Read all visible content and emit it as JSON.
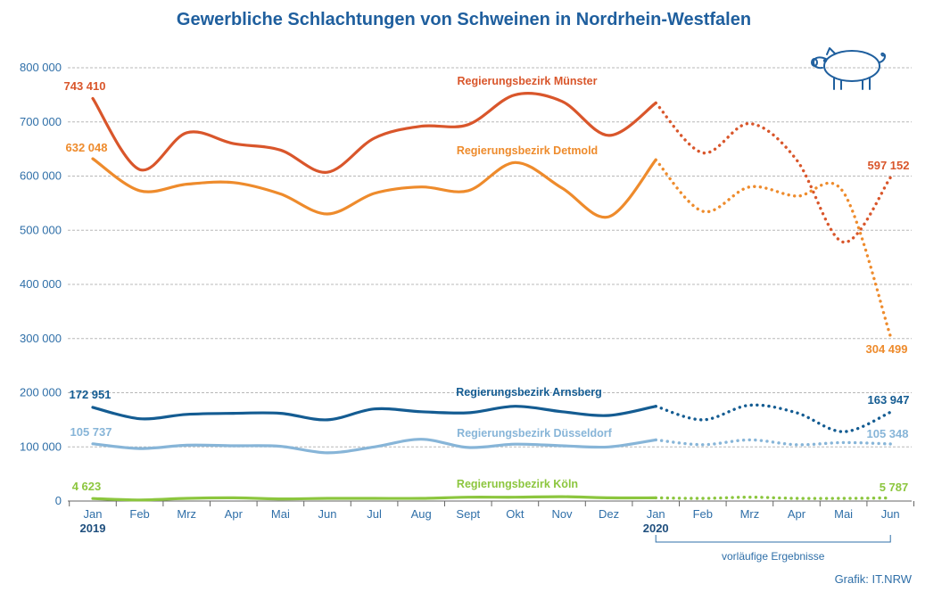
{
  "chart_data": {
    "type": "line",
    "title": "Gewerbliche Schlachtungen von Schweinen in Nordrhein-Westfalen",
    "xlabel": "",
    "ylabel": "",
    "ylim": [
      0,
      800000
    ],
    "yticks": [
      0,
      100000,
      200000,
      300000,
      400000,
      500000,
      600000,
      700000,
      800000
    ],
    "ytick_labels": [
      "0",
      "100 000",
      "200 000",
      "300 000",
      "400 000",
      "500 000",
      "600 000",
      "700 000",
      "800 000"
    ],
    "grid": true,
    "categories": [
      "Jan",
      "Feb",
      "Mrz",
      "Apr",
      "Mai",
      "Jun",
      "Jul",
      "Aug",
      "Sept",
      "Okt",
      "Nov",
      "Dez",
      "Jan",
      "Feb",
      "Mrz",
      "Apr",
      "Mai",
      "Jun"
    ],
    "years": [
      {
        "label": "2019",
        "index": 0
      },
      {
        "label": "2020",
        "index": 12
      }
    ],
    "provisional_from_index": 12,
    "provisional_note": "vorläufige Ergebnisse",
    "series": [
      {
        "name": "Regierungsbezirk Münster",
        "color": "#d9562b",
        "values": [
          743410,
          612000,
          680000,
          660000,
          648000,
          607000,
          670000,
          692000,
          695000,
          750000,
          738000,
          675000,
          735000,
          643000,
          697000,
          630000,
          478000,
          597152
        ],
        "start_label": "743 410",
        "end_label": "597 152"
      },
      {
        "name": "Regierungsbezirk Detmold",
        "color": "#ee8b2c",
        "values": [
          632048,
          573000,
          585000,
          588000,
          567000,
          530000,
          568000,
          580000,
          573000,
          625000,
          578000,
          525000,
          630000,
          535000,
          580000,
          563000,
          570000,
          304499
        ],
        "start_label": "632 048",
        "end_label": "304 499"
      },
      {
        "name": "Regierungsbezirk Arnsberg",
        "color": "#145c92",
        "values": [
          172951,
          152000,
          160000,
          162000,
          162000,
          150000,
          170000,
          165000,
          163000,
          175000,
          165000,
          158000,
          175000,
          150000,
          177000,
          163000,
          128000,
          163947
        ],
        "start_label": "172 951",
        "end_label": "163 947"
      },
      {
        "name": "Regierungsbezirk Düsseldorf",
        "color": "#87b5d8",
        "values": [
          105737,
          97000,
          103000,
          102000,
          101000,
          89000,
          100000,
          114000,
          99000,
          105000,
          102000,
          100000,
          113000,
          104000,
          113000,
          104000,
          108000,
          105348
        ],
        "start_label": "105 737",
        "end_label": "105 348"
      },
      {
        "name": "Regierungsbezirk Köln",
        "color": "#8cc63e",
        "values": [
          4623,
          2000,
          5000,
          6000,
          4000,
          5000,
          5000,
          5000,
          7000,
          7000,
          8000,
          6000,
          6000,
          5000,
          7000,
          5000,
          5000,
          5787
        ],
        "start_label": "4 623",
        "end_label": "5 787"
      }
    ]
  },
  "credit": "Grafik: IT.NRW",
  "icon": "pig-icon",
  "colors": {
    "axis_text": "#2f6fa8",
    "title": "#1f5f9e",
    "grid": "#b5b5b5"
  }
}
